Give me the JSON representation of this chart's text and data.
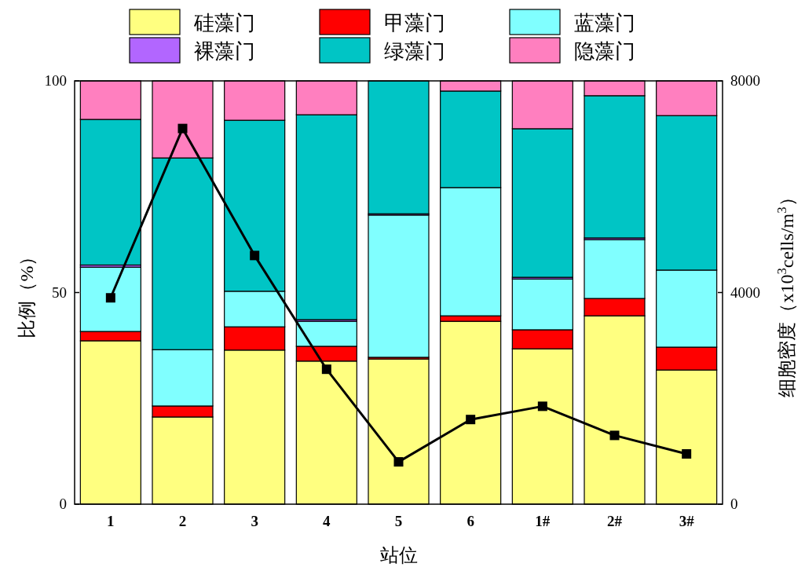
{
  "chart_data": {
    "type": "bar",
    "stacked": true,
    "legend": "top",
    "categories": [
      "1",
      "2",
      "3",
      "4",
      "5",
      "6",
      "1#",
      "2#",
      "3#"
    ],
    "xlabel": "站位",
    "ylabel": "比例（%）",
    "y2label": "细胞密度（x10$^{3}$cells/m$^{3}$）",
    "ylim": [
      0,
      100
    ],
    "yticks": [
      0,
      50,
      100
    ],
    "y2lim": [
      0,
      8000
    ],
    "y2ticks": [
      0,
      4000,
      8000
    ],
    "series": [
      {
        "name": "硅藻门",
        "color": "#ffff80",
        "values": [
          38.6,
          20.6,
          36.4,
          33.8,
          34.3,
          43.2,
          36.7,
          44.5,
          31.7
        ]
      },
      {
        "name": "甲藻门",
        "color": "#ff0000",
        "values": [
          2.2,
          2.6,
          5.5,
          3.5,
          0.4,
          1.3,
          4.5,
          4.1,
          5.4
        ]
      },
      {
        "name": "蓝藻门",
        "color": "#80ffff",
        "values": [
          15.2,
          13.3,
          8.4,
          5.9,
          33.6,
          30.3,
          12.0,
          13.9,
          18.2
        ]
      },
      {
        "name": "裸藻门",
        "color": "#b266ff",
        "values": [
          0.5,
          0,
          0,
          0.4,
          0.3,
          0,
          0.4,
          0.4,
          0
        ]
      },
      {
        "name": "绿藻门",
        "color": "#00c5c5",
        "values": [
          34.4,
          45.3,
          40.4,
          48.4,
          31.4,
          22.8,
          35.1,
          33.6,
          36.5
        ]
      },
      {
        "name": "隐藻门",
        "color": "#ff7fbf",
        "values": [
          9.1,
          18.2,
          9.3,
          8.0,
          0,
          2.4,
          11.3,
          3.5,
          8.2
        ]
      },
      {
        "type": "line",
        "axis": "y2",
        "marker": "square",
        "color": "#000000",
        "values": [
          3900,
          7100,
          4700,
          2550,
          800,
          1600,
          1850,
          1300,
          950
        ]
      }
    ]
  }
}
